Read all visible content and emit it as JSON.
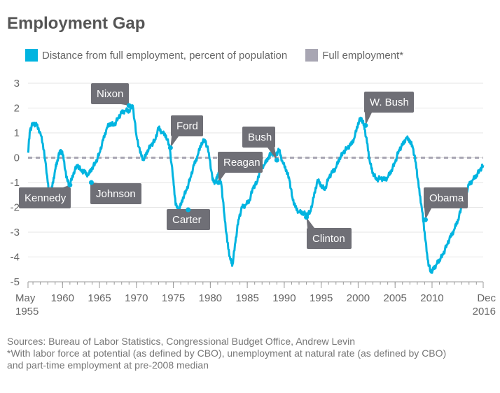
{
  "title": "Employment Gap",
  "legend": [
    {
      "label": "Distance from full employment, percent of population",
      "color": "#00b4e0"
    },
    {
      "label": "Full employment*",
      "color": "#a8a6b3"
    }
  ],
  "notes": {
    "line1": "Sources: Bureau of Labor Statistics, Congressional Budget Office, Andrew Levin",
    "line2": "*With labor force at potential (as defined by CBO), unemployment at natural rate (as defined by CBO) and part-time employment at pre-2008 median"
  },
  "chart_data": {
    "type": "line",
    "title": "Employment Gap",
    "xlabel": "",
    "ylabel": "",
    "xlim": [
      1955.33,
      2016.92
    ],
    "ylim": [
      -5,
      3
    ],
    "y_ticks": [
      3,
      2,
      1,
      0,
      -1,
      -2,
      -3,
      -4,
      -5
    ],
    "x_ticks": [
      {
        "x": 1955.33,
        "label": "May",
        "label2": "1955"
      },
      {
        "x": 1960,
        "label": "1960"
      },
      {
        "x": 1965,
        "label": "1965"
      },
      {
        "x": 1970,
        "label": "1970"
      },
      {
        "x": 1975,
        "label": "1975"
      },
      {
        "x": 1980,
        "label": "1980"
      },
      {
        "x": 1985,
        "label": "1985"
      },
      {
        "x": 1990,
        "label": "1990"
      },
      {
        "x": 1995,
        "label": "1995"
      },
      {
        "x": 2000,
        "label": "2000"
      },
      {
        "x": 2005,
        "label": "2005"
      },
      {
        "x": 2010,
        "label": "2010"
      },
      {
        "x": 2016.92,
        "label": "Dec",
        "label2": "2016"
      }
    ],
    "grid": true,
    "legend_position": "top",
    "reference_line": {
      "name": "Full employment*",
      "y": 0
    },
    "series": [
      {
        "name": "Distance from full employment, percent of population",
        "x": [
          1955.33,
          1955.6,
          1956.0,
          1956.5,
          1957.0,
          1957.5,
          1958.0,
          1958.3,
          1958.6,
          1959.0,
          1959.3,
          1959.7,
          1960.1,
          1960.5,
          1961.0,
          1961.5,
          1962.0,
          1962.5,
          1963.0,
          1963.5,
          1964.0,
          1964.5,
          1965.0,
          1965.5,
          1966.0,
          1966.5,
          1967.0,
          1967.5,
          1968.0,
          1968.5,
          1969.0,
          1969.5,
          1970.0,
          1970.5,
          1971.0,
          1971.5,
          1972.0,
          1972.5,
          1973.0,
          1973.5,
          1974.0,
          1974.5,
          1975.0,
          1975.3,
          1975.8,
          1976.3,
          1976.8,
          1977.3,
          1977.8,
          1978.3,
          1978.8,
          1979.3,
          1979.8,
          1980.3,
          1980.7,
          1981.1,
          1981.5,
          1981.9,
          1982.3,
          1982.7,
          1983.0,
          1983.4,
          1983.8,
          1984.3,
          1984.8,
          1985.3,
          1985.8,
          1986.3,
          1986.8,
          1987.3,
          1987.8,
          1988.3,
          1988.8,
          1989.3,
          1989.8,
          1990.3,
          1990.7,
          1991.1,
          1991.5,
          1992.0,
          1992.5,
          1993.0,
          1993.5,
          1994.0,
          1994.5,
          1995.0,
          1995.5,
          1996.0,
          1996.5,
          1997.0,
          1997.5,
          1998.0,
          1998.5,
          1999.0,
          1999.5,
          2000.0,
          2000.4,
          2000.8,
          2001.2,
          2001.6,
          2002.0,
          2002.5,
          2003.0,
          2003.5,
          2004.0,
          2004.5,
          2005.0,
          2005.5,
          2006.0,
          2006.5,
          2007.0,
          2007.4,
          2007.8,
          2008.2,
          2008.6,
          2009.0,
          2009.4,
          2009.8,
          2010.2,
          2010.6,
          2011.0,
          2011.5,
          2012.0,
          2012.5,
          2013.0,
          2013.5,
          2014.0,
          2014.5,
          2015.0,
          2015.5,
          2016.0,
          2016.5,
          2016.92
        ],
        "y": [
          0.2,
          1.1,
          1.4,
          1.3,
          1.0,
          0.3,
          -1.0,
          -1.5,
          -1.2,
          -0.5,
          -0.1,
          0.3,
          0.1,
          -0.8,
          -1.1,
          -0.6,
          -0.3,
          -0.5,
          -0.6,
          -0.7,
          -0.4,
          -0.2,
          0.2,
          0.7,
          1.2,
          1.4,
          1.3,
          1.6,
          1.8,
          1.9,
          1.9,
          2.1,
          0.9,
          0.2,
          -0.1,
          0.3,
          0.5,
          0.7,
          1.2,
          1.0,
          0.9,
          0.4,
          -0.9,
          -1.9,
          -2.1,
          -1.6,
          -1.3,
          -0.8,
          -0.3,
          0.1,
          0.6,
          0.7,
          0.2,
          -0.9,
          -1.0,
          -0.6,
          -1.1,
          -2.3,
          -3.4,
          -4.1,
          -4.3,
          -3.4,
          -2.5,
          -2.0,
          -1.9,
          -1.7,
          -1.2,
          -1.0,
          -0.4,
          -0.3,
          0.0,
          0.2,
          0.1,
          0.3,
          -0.2,
          -0.5,
          -0.9,
          -1.6,
          -2.0,
          -2.2,
          -2.2,
          -2.3,
          -2.2,
          -1.6,
          -0.9,
          -1.1,
          -1.3,
          -0.8,
          -0.6,
          -0.4,
          0.0,
          0.2,
          0.4,
          0.5,
          0.8,
          1.4,
          1.6,
          1.3,
          0.6,
          -0.2,
          -0.6,
          -0.9,
          -0.8,
          -0.9,
          -0.8,
          -0.5,
          -0.2,
          0.3,
          0.5,
          0.8,
          0.7,
          0.4,
          -0.2,
          -1.2,
          -2.0,
          -3.0,
          -4.1,
          -4.6,
          -4.5,
          -4.3,
          -4.1,
          -3.9,
          -3.5,
          -3.2,
          -2.9,
          -2.5,
          -2.0,
          -1.5,
          -1.1,
          -0.9,
          -0.7,
          -0.5,
          -0.3
        ]
      }
    ],
    "annotations": [
      {
        "label": "Kennedy",
        "x": 1961.0,
        "y": -1.1
      },
      {
        "label": "Johnson",
        "x": 1963.9,
        "y": -1.0
      },
      {
        "label": "Nixon",
        "x": 1969.0,
        "y": 2.1
      },
      {
        "label": "Ford",
        "x": 1974.6,
        "y": 0.4
      },
      {
        "label": "Carter",
        "x": 1977.0,
        "y": -2.1
      },
      {
        "label": "Reagan",
        "x": 1981.1,
        "y": -1.0
      },
      {
        "label": "Bush",
        "x": 1989.0,
        "y": -0.1
      },
      {
        "label": "Clinton",
        "x": 1993.0,
        "y": -2.4
      },
      {
        "label": "W. Bush",
        "x": 2001.0,
        "y": 1.3
      },
      {
        "label": "Obama",
        "x": 2009.1,
        "y": -2.5
      }
    ]
  }
}
